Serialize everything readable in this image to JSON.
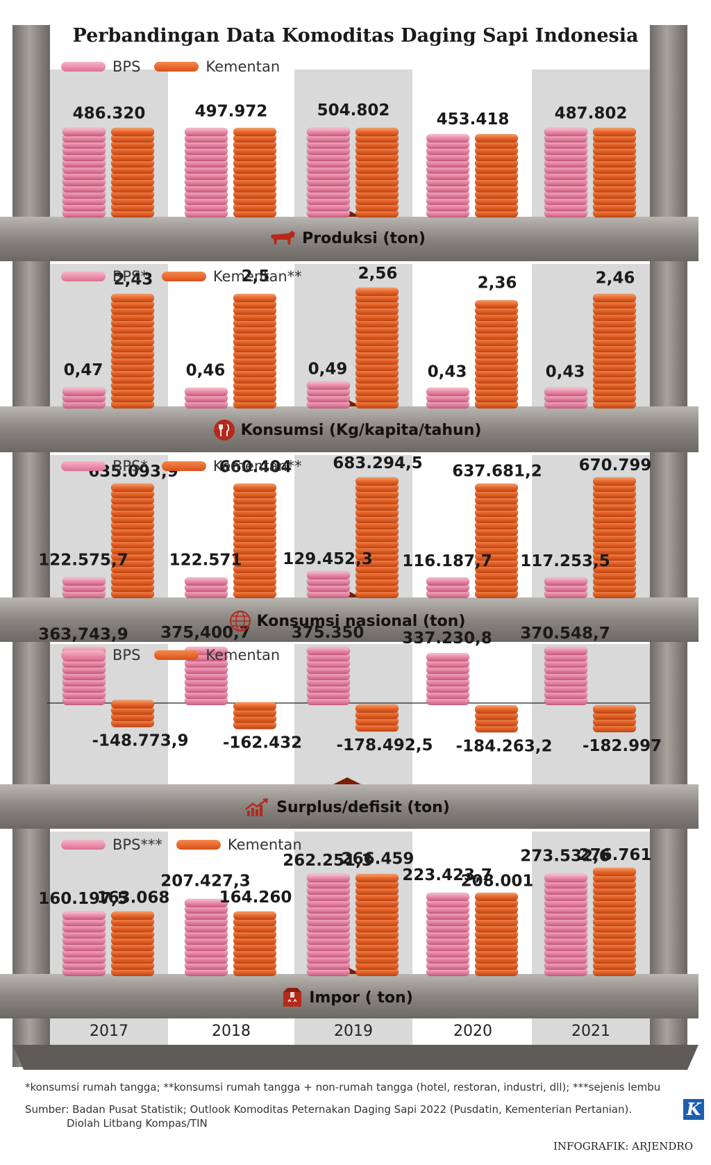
{
  "title": "Perbandingan Data Komoditas Daging Sapi Indonesia",
  "years": [
    "2017",
    "2018",
    "2019",
    "2020",
    "2021"
  ],
  "colors": {
    "bps": "#e57a9c",
    "kementan": "#e0571f",
    "beam": "#8a8580",
    "panel_bg": "#d8d8d8"
  },
  "chart_data": [
    {
      "type": "bar",
      "panel": "produksi",
      "xlabel": "Produksi (ton)",
      "icon": "cow-icon",
      "legend": [
        "BPS",
        "Kementan"
      ],
      "categories": [
        "2017",
        "2018",
        "2019",
        "2020",
        "2021"
      ],
      "series": [
        {
          "name": "BPS",
          "values": [
            486320,
            497972,
            504802,
            453418,
            487802
          ]
        },
        {
          "name": "Kementan",
          "values": [
            486320,
            497972,
            504802,
            453418,
            487802
          ]
        }
      ],
      "labels": [
        "486.320",
        "497.972",
        "504.802",
        "453.418",
        "487.802"
      ]
    },
    {
      "type": "bar",
      "panel": "konsumsi",
      "xlabel": "Konsumsi (Kg/kapita/tahun)",
      "icon": "fork-knife-icon",
      "legend": [
        "BPS*",
        "Kementan**"
      ],
      "categories": [
        "2017",
        "2018",
        "2019",
        "2020",
        "2021"
      ],
      "series": [
        {
          "name": "BPS*",
          "values": [
            0.47,
            0.46,
            0.49,
            0.43,
            0.43
          ],
          "labels": [
            "0,47",
            "0,46",
            "0,49",
            "0,43",
            "0,43"
          ]
        },
        {
          "name": "Kementan**",
          "values": [
            2.43,
            2.5,
            2.56,
            2.36,
            2.46
          ],
          "labels": [
            "2,43",
            "2,5",
            "2,56",
            "2,36",
            "2,46"
          ]
        }
      ]
    },
    {
      "type": "bar",
      "panel": "konsumsi-nasional",
      "xlabel": "Konsumsi nasional (ton)",
      "icon": "globe-icon",
      "legend": [
        "BPS*",
        "Kementan**"
      ],
      "categories": [
        "2017",
        "2018",
        "2019",
        "2020",
        "2021"
      ],
      "series": [
        {
          "name": "BPS*",
          "values": [
            122575.7,
            122571,
            129452.3,
            116187.7,
            117253.5
          ],
          "labels": [
            "122.575,7",
            "122.571",
            "129.452,3",
            "116.187,7",
            "117.253,5"
          ]
        },
        {
          "name": "Kementan**",
          "values": [
            635093.9,
            660404,
            683294.5,
            637681.2,
            670799
          ],
          "labels": [
            "635.093,9",
            "660.404",
            "683.294,5",
            "637.681,2",
            "670.799"
          ]
        }
      ]
    },
    {
      "type": "bar",
      "panel": "surplus-defisit",
      "xlabel": "Surplus/defisit (ton)",
      "icon": "trend-chart-icon",
      "legend": [
        "BPS",
        "Kementan"
      ],
      "categories": [
        "2017",
        "2018",
        "2019",
        "2020",
        "2021"
      ],
      "series": [
        {
          "name": "BPS",
          "values": [
            363743.9,
            375400.7,
            375350,
            337230.8,
            370548.7
          ],
          "labels": [
            "363,743,9",
            "375,400,7",
            "375.350",
            "337.230,8",
            "370.548,7"
          ]
        },
        {
          "name": "Kementan",
          "values": [
            -148773.9,
            -162432,
            -178492.5,
            -184263.2,
            -182997
          ],
          "labels": [
            "-148.773,9",
            "-162.432",
            "-178.492,5",
            "-184.263,2",
            "-182.997"
          ]
        }
      ]
    },
    {
      "type": "bar",
      "panel": "impor",
      "xlabel": "Impor ( ton)",
      "icon": "box-icon",
      "legend": [
        "BPS***",
        "Kementan"
      ],
      "categories": [
        "2017",
        "2018",
        "2019",
        "2020",
        "2021"
      ],
      "series": [
        {
          "name": "BPS***",
          "values": [
            160197.5,
            207427.3,
            262251.3,
            223423.7,
            273532.6
          ],
          "labels": [
            "160.197,5",
            "207.427,3",
            "262.251,3",
            "223.423,7",
            "273.532,6"
          ]
        },
        {
          "name": "Kementan",
          "values": [
            163068,
            164260,
            266459,
            208001,
            276761
          ],
          "labels": [
            "163.068",
            "164.260",
            "266.459",
            "208.001",
            "276.761"
          ]
        }
      ]
    }
  ],
  "footnote": "*konsumsi rumah tangga; **konsumsi rumah tangga + non-rumah tangga (hotel, restoran, industri, dll); ***sejenis lembu",
  "source_line1": "Sumber: Badan Pusat Statistik; Outlook Komoditas Peternakan Daging Sapi 2022 (Pusdatin, Kementerian Pertanian).",
  "source_line2": "Diolah Litbang Kompas/TIN",
  "credit": "INFOGRAFIK: ARJENDRO",
  "logo_letter": "K"
}
